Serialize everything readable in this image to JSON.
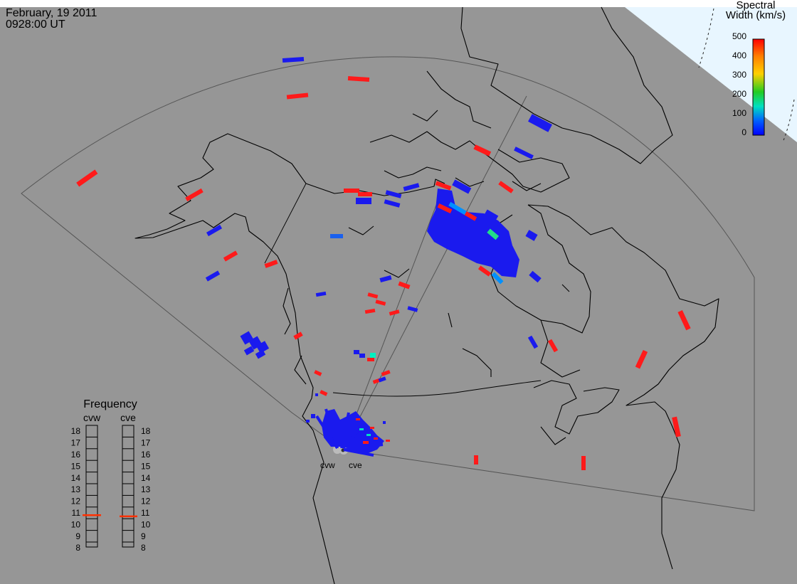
{
  "header": {
    "date": "February, 19 2011",
    "time": "0928:00 UT"
  },
  "colorbar": {
    "title_line1": "Spectral",
    "title_line2": "Width (km/s)",
    "ticks": [
      "500",
      "400",
      "300",
      "200",
      "100",
      "0"
    ],
    "colors": [
      "#ff0000",
      "#ff8000",
      "#ffd000",
      "#22cc22",
      "#00e0c0",
      "#0060ff",
      "#0000ff"
    ]
  },
  "radars": {
    "west_label": "cvw",
    "east_label": "cve"
  },
  "frequency_panel": {
    "title": "Frequency",
    "cvw_label": "cvw",
    "cve_label": "cve",
    "scale": [
      "18",
      "17",
      "16",
      "15",
      "14",
      "13",
      "12",
      "11",
      "10",
      "9",
      "8"
    ],
    "cvw_value_mhz": 10.8,
    "cve_value_mhz": 10.7,
    "marker_color": "#ff3000"
  },
  "colors": {
    "background": "#969696",
    "coast": "#000000",
    "fov": "#555555",
    "polar_region": "#e8f6ff"
  }
}
